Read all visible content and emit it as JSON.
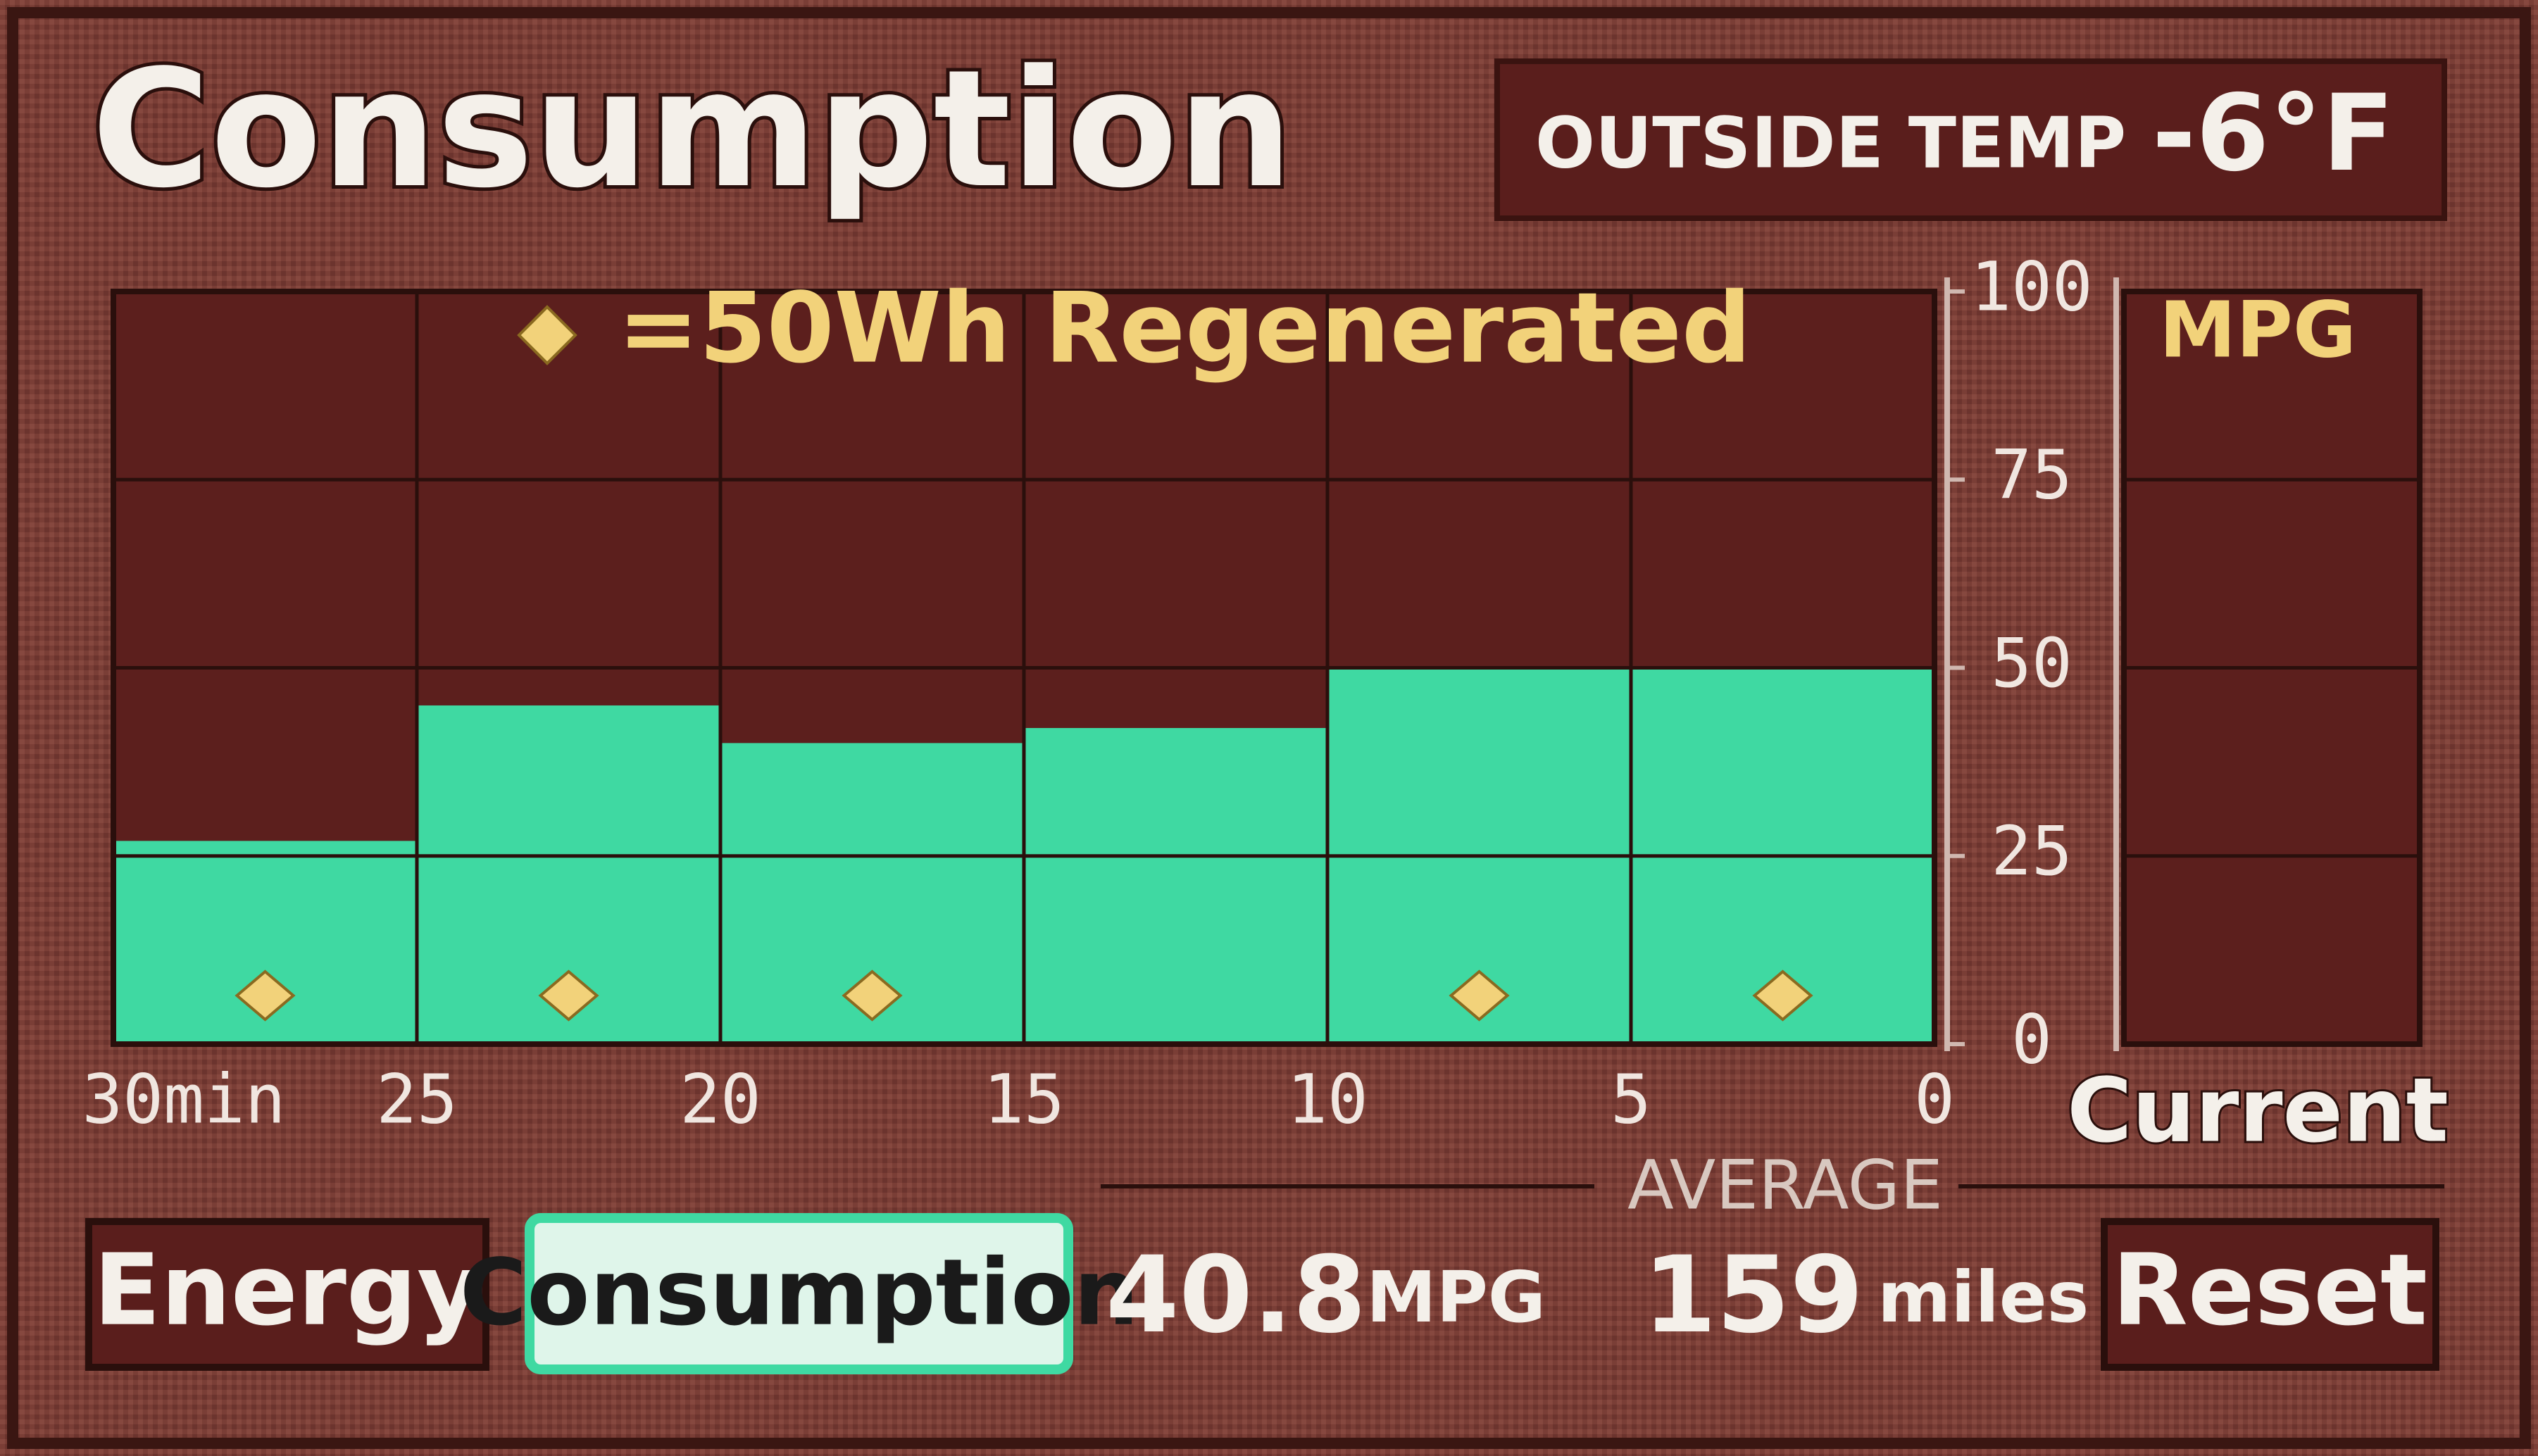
{
  "header": {
    "title": "Consumption",
    "temp_label": "OUTSIDE TEMP",
    "temp_value": -6,
    "temp_unit": "°F"
  },
  "chart_data": {
    "type": "histogram",
    "legend": "=50Wh Regenerated",
    "bins": [
      30,
      25,
      20,
      15,
      10,
      5,
      0
    ],
    "values": [
      27,
      45,
      40,
      42,
      50,
      50
    ],
    "regen_icons": [
      1,
      1,
      1,
      0,
      1,
      1
    ],
    "color": "#3fd9a2",
    "xlim": [
      30,
      0
    ],
    "xticks": [
      {
        "value": 30,
        "label": "30min"
      },
      25,
      20,
      15,
      10,
      5,
      0
    ],
    "ylim": [
      0,
      100
    ],
    "yticks": [
      0,
      25,
      50,
      75,
      100
    ],
    "grid": true,
    "current_label": "MPG",
    "current_caption": "Current"
  },
  "average": {
    "label": "AVERAGE",
    "mpg": 40.8,
    "mpg_unit": "MPG",
    "miles": 159,
    "miles_unit": "miles"
  },
  "buttons": [
    "Energy",
    "Consumption",
    "Reset"
  ]
}
